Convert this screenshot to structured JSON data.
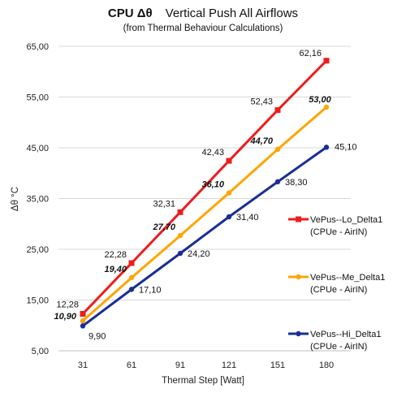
{
  "chart_data": {
    "type": "line",
    "title_main": "CPU  Δθ",
    "title_rest": "Vertical Push All Airflows",
    "subtitle": "(from Thermal Behaviour Calculations)",
    "xlabel": "Thermal Step [Watt]",
    "ylabel": "Δθ °C",
    "categories": [
      "31",
      "61",
      "91",
      "121",
      "151",
      "180"
    ],
    "yticks": [
      "5,00",
      "15,00",
      "25,00",
      "35,00",
      "45,00",
      "55,00",
      "65,00"
    ],
    "ylim": [
      5,
      65
    ],
    "grid": true,
    "legend_position": "right",
    "series": [
      {
        "key": "lo",
        "name": "VePus--Lo_Delta1",
        "name_line2": "(CPUe - AirIN)",
        "color": "#ee1c1c",
        "marker": "square",
        "label_style": "normal",
        "values": [
          12.28,
          22.28,
          32.31,
          42.43,
          52.43,
          62.16
        ],
        "labels": [
          "12,28",
          "22,28",
          "32,31",
          "42,43",
          "52,43",
          "62,16"
        ]
      },
      {
        "key": "me",
        "name": "VePus--Me_Delta1",
        "name_line2": "(CPUe - AirIN)",
        "color": "#ffa500",
        "marker": "circle",
        "label_style": "bold-italic",
        "values": [
          10.9,
          19.4,
          27.7,
          36.1,
          44.7,
          53.0
        ],
        "labels": [
          "10,90",
          "19,40",
          "27,70",
          "36,10",
          "44,70",
          "53,00"
        ]
      },
      {
        "key": "hi",
        "name": "VePus--Hi_Delta1",
        "name_line2": "(CPUe - AirIN)",
        "color": "#1a2e96",
        "marker": "circle",
        "label_style": "normal",
        "values": [
          9.9,
          17.1,
          24.2,
          31.4,
          38.3,
          45.1
        ],
        "labels": [
          "9,90",
          "17,10",
          "24,20",
          "31,40",
          "38,30",
          "45,10"
        ]
      }
    ]
  }
}
